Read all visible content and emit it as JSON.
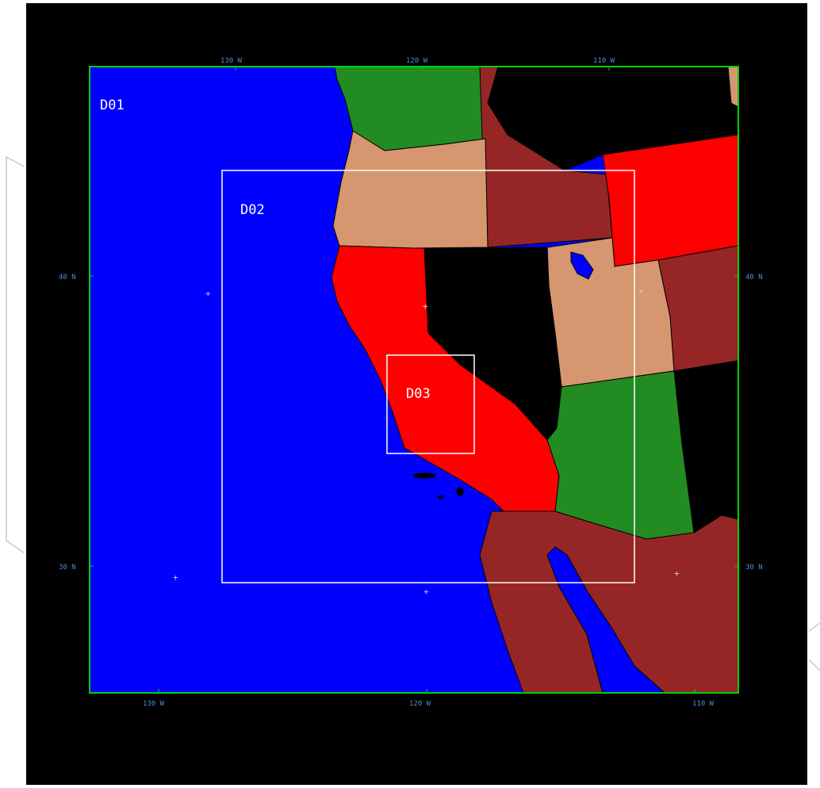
{
  "map": {
    "colors": {
      "ocean": "#0000ff",
      "background": "#000000",
      "frame": "#00d000",
      "domain_box": "#ffffff",
      "tick_label": "#4a8ad8",
      "red": "#ff0000",
      "tan": "#d69670",
      "maroon": "#962626",
      "green": "#228b22",
      "black": "#000000"
    },
    "domains": [
      "D01",
      "D02",
      "D03"
    ],
    "top_ticks": [
      "130 W",
      "120 W",
      "110 W"
    ],
    "bottom_ticks": [
      "130 W",
      "120 W",
      "110 W"
    ],
    "left_ticks": [
      "40 N",
      "30 N"
    ],
    "right_ticks": [
      "40 N",
      "30 N"
    ]
  }
}
